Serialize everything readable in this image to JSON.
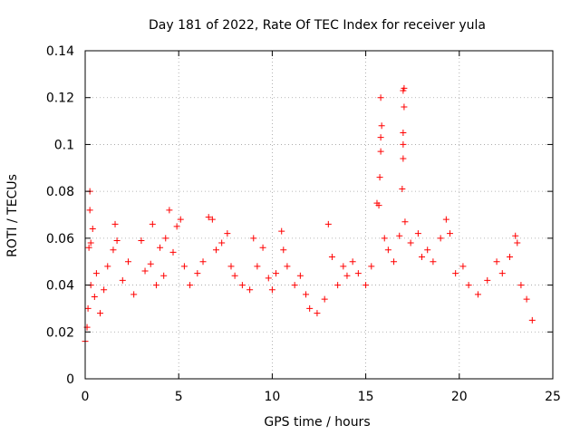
{
  "chart_data": {
    "type": "scatter",
    "title": "Day 181 of 2022, Rate Of TEC Index for receiver yula",
    "xlabel": "GPS time / hours",
    "ylabel": "ROTI / TECUs",
    "xlim": [
      0,
      25
    ],
    "ylim": [
      0,
      0.14
    ],
    "xticks": [
      0,
      5,
      10,
      15,
      20,
      25
    ],
    "xtick_labels": [
      "0",
      "5",
      "10",
      "15",
      "20",
      "25"
    ],
    "yticks": [
      0,
      0.02,
      0.04,
      0.06,
      0.08,
      0.1,
      0.12,
      0.14
    ],
    "ytick_labels": [
      "0",
      "0.02",
      "0.04",
      "0.06",
      "0.08",
      "0.1",
      "0.12",
      "0.14"
    ],
    "grid": true,
    "marker": "+",
    "color": "#ff0000",
    "series": [
      {
        "name": "ROTI",
        "points": [
          [
            0.0,
            0.016
          ],
          [
            0.1,
            0.022
          ],
          [
            0.15,
            0.03
          ],
          [
            0.2,
            0.056
          ],
          [
            0.25,
            0.072
          ],
          [
            0.25,
            0.08
          ],
          [
            0.3,
            0.058
          ],
          [
            0.3,
            0.04
          ],
          [
            0.4,
            0.064
          ],
          [
            0.5,
            0.035
          ],
          [
            0.6,
            0.045
          ],
          [
            0.8,
            0.028
          ],
          [
            1.0,
            0.038
          ],
          [
            1.2,
            0.048
          ],
          [
            1.5,
            0.055
          ],
          [
            1.6,
            0.066
          ],
          [
            1.7,
            0.059
          ],
          [
            2.0,
            0.042
          ],
          [
            2.3,
            0.05
          ],
          [
            2.6,
            0.036
          ],
          [
            3.0,
            0.059
          ],
          [
            3.2,
            0.046
          ],
          [
            3.5,
            0.049
          ],
          [
            3.6,
            0.066
          ],
          [
            3.8,
            0.04
          ],
          [
            4.0,
            0.056
          ],
          [
            4.2,
            0.044
          ],
          [
            4.3,
            0.06
          ],
          [
            4.5,
            0.072
          ],
          [
            4.7,
            0.054
          ],
          [
            4.9,
            0.065
          ],
          [
            5.1,
            0.068
          ],
          [
            5.3,
            0.048
          ],
          [
            5.6,
            0.04
          ],
          [
            6.0,
            0.045
          ],
          [
            6.3,
            0.05
          ],
          [
            6.6,
            0.069
          ],
          [
            6.8,
            0.068
          ],
          [
            7.0,
            0.055
          ],
          [
            7.3,
            0.058
          ],
          [
            7.6,
            0.062
          ],
          [
            7.8,
            0.048
          ],
          [
            8.0,
            0.044
          ],
          [
            8.4,
            0.04
          ],
          [
            8.8,
            0.038
          ],
          [
            9.0,
            0.06
          ],
          [
            9.2,
            0.048
          ],
          [
            9.5,
            0.056
          ],
          [
            9.8,
            0.043
          ],
          [
            10.0,
            0.038
          ],
          [
            10.2,
            0.045
          ],
          [
            10.5,
            0.063
          ],
          [
            10.6,
            0.055
          ],
          [
            10.8,
            0.048
          ],
          [
            11.2,
            0.04
          ],
          [
            11.5,
            0.044
          ],
          [
            11.8,
            0.036
          ],
          [
            12.0,
            0.03
          ],
          [
            12.4,
            0.028
          ],
          [
            12.8,
            0.034
          ],
          [
            13.0,
            0.066
          ],
          [
            13.2,
            0.052
          ],
          [
            13.5,
            0.04
          ],
          [
            13.8,
            0.048
          ],
          [
            14.0,
            0.044
          ],
          [
            14.3,
            0.05
          ],
          [
            14.6,
            0.045
          ],
          [
            15.0,
            0.04
          ],
          [
            15.3,
            0.048
          ],
          [
            15.6,
            0.075
          ],
          [
            15.7,
            0.074
          ],
          [
            15.75,
            0.086
          ],
          [
            15.8,
            0.097
          ],
          [
            15.8,
            0.103
          ],
          [
            15.85,
            0.108
          ],
          [
            15.8,
            0.12
          ],
          [
            16.0,
            0.06
          ],
          [
            16.2,
            0.055
          ],
          [
            16.5,
            0.05
          ],
          [
            16.8,
            0.061
          ],
          [
            16.95,
            0.081
          ],
          [
            17.0,
            0.094
          ],
          [
            17.0,
            0.1
          ],
          [
            17.0,
            0.105
          ],
          [
            17.05,
            0.116
          ],
          [
            17.0,
            0.123
          ],
          [
            17.05,
            0.124
          ],
          [
            17.1,
            0.067
          ],
          [
            17.4,
            0.058
          ],
          [
            17.8,
            0.062
          ],
          [
            18.0,
            0.052
          ],
          [
            18.3,
            0.055
          ],
          [
            18.6,
            0.05
          ],
          [
            19.0,
            0.06
          ],
          [
            19.3,
            0.068
          ],
          [
            19.5,
            0.062
          ],
          [
            19.8,
            0.045
          ],
          [
            20.2,
            0.048
          ],
          [
            20.5,
            0.04
          ],
          [
            21.0,
            0.036
          ],
          [
            21.5,
            0.042
          ],
          [
            22.0,
            0.05
          ],
          [
            22.3,
            0.045
          ],
          [
            22.7,
            0.052
          ],
          [
            23.0,
            0.061
          ],
          [
            23.1,
            0.058
          ],
          [
            23.3,
            0.04
          ],
          [
            23.6,
            0.034
          ],
          [
            23.9,
            0.025
          ]
        ]
      }
    ]
  }
}
